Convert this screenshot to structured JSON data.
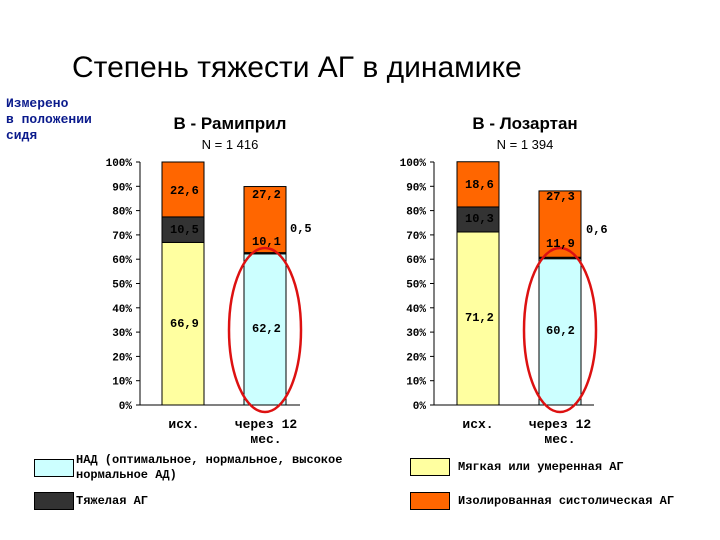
{
  "title": "Степень тяжести АГ в динамике",
  "side_note": [
    "Измерено",
    "в положении",
    "сидя"
  ],
  "colors": {
    "mild": "#ffffa0",
    "normal": "#ccffff",
    "severe": "#333333",
    "isolated": "#ff6600",
    "highlight": "#dd1111"
  },
  "chart_data": [
    {
      "type": "bar",
      "stacked": true,
      "title": "В - Рамиприл",
      "subtitle": "N = 1 416",
      "categories": [
        "исх.",
        "через 12 мес."
      ],
      "ylim": [
        0,
        100
      ],
      "ytick_labels": [
        "0%",
        "10%",
        "20%",
        "30%",
        "40%",
        "50%",
        "60%",
        "70%",
        "80%",
        "90%",
        "100%"
      ],
      "series": [
        {
          "name": "Мягкая или умеренная АГ",
          "key": "mild",
          "values": [
            66.9,
            null
          ],
          "labels": [
            "66,9",
            ""
          ]
        },
        {
          "name": "НАД (оптимальное, нормальное, высокое нормальное АД)",
          "key": "normal",
          "values": [
            null,
            62.2
          ],
          "labels": [
            "",
            "62,2"
          ]
        },
        {
          "name": "Тяжелая АГ",
          "key": "severe",
          "values": [
            10.5,
            0.5
          ],
          "labels": [
            "10,5",
            "0,5"
          ]
        },
        {
          "name": "Изолированная систолическая АГ",
          "key": "isolated",
          "values": [
            22.6,
            27.2
          ],
          "labels": [
            "22,6",
            "27,2"
          ]
        }
      ],
      "extra_labels": [
        "",
        "10,1"
      ],
      "highlighted_category": "через 12 мес."
    },
    {
      "type": "bar",
      "stacked": true,
      "title": "В - Лозартан",
      "subtitle": "N = 1 394",
      "categories": [
        "исх.",
        "через 12 мес."
      ],
      "ylim": [
        0,
        100
      ],
      "ytick_labels": [
        "0%",
        "10%",
        "20%",
        "30%",
        "40%",
        "50%",
        "60%",
        "70%",
        "80%",
        "90%",
        "100%"
      ],
      "series": [
        {
          "name": "Мягкая или умеренная АГ",
          "key": "mild",
          "values": [
            71.2,
            null
          ],
          "labels": [
            "71,2",
            ""
          ]
        },
        {
          "name": "НАД (оптимальное, нормальное, высокое нормальное АД)",
          "key": "normal",
          "values": [
            null,
            60.2
          ],
          "labels": [
            "",
            "60,2"
          ]
        },
        {
          "name": "Тяжелая АГ",
          "key": "severe",
          "values": [
            10.3,
            0.6
          ],
          "labels": [
            "10,3",
            "0,6"
          ]
        },
        {
          "name": "Изолированная систолическая АГ",
          "key": "isolated",
          "values": [
            18.6,
            27.3
          ],
          "labels": [
            "18,6",
            "27,3"
          ]
        }
      ],
      "extra_labels": [
        "",
        "11,9"
      ],
      "highlighted_category": "через 12 мес."
    }
  ],
  "legend": [
    {
      "label": "НАД (оптимальное, нормальное, высокое нормальное АД)",
      "key": "normal"
    },
    {
      "label": "Мягкая или умеренная АГ",
      "key": "mild"
    },
    {
      "label": "Тяжелая АГ",
      "key": "severe"
    },
    {
      "label": "Изолированная систолическая АГ",
      "key": "isolated"
    }
  ]
}
